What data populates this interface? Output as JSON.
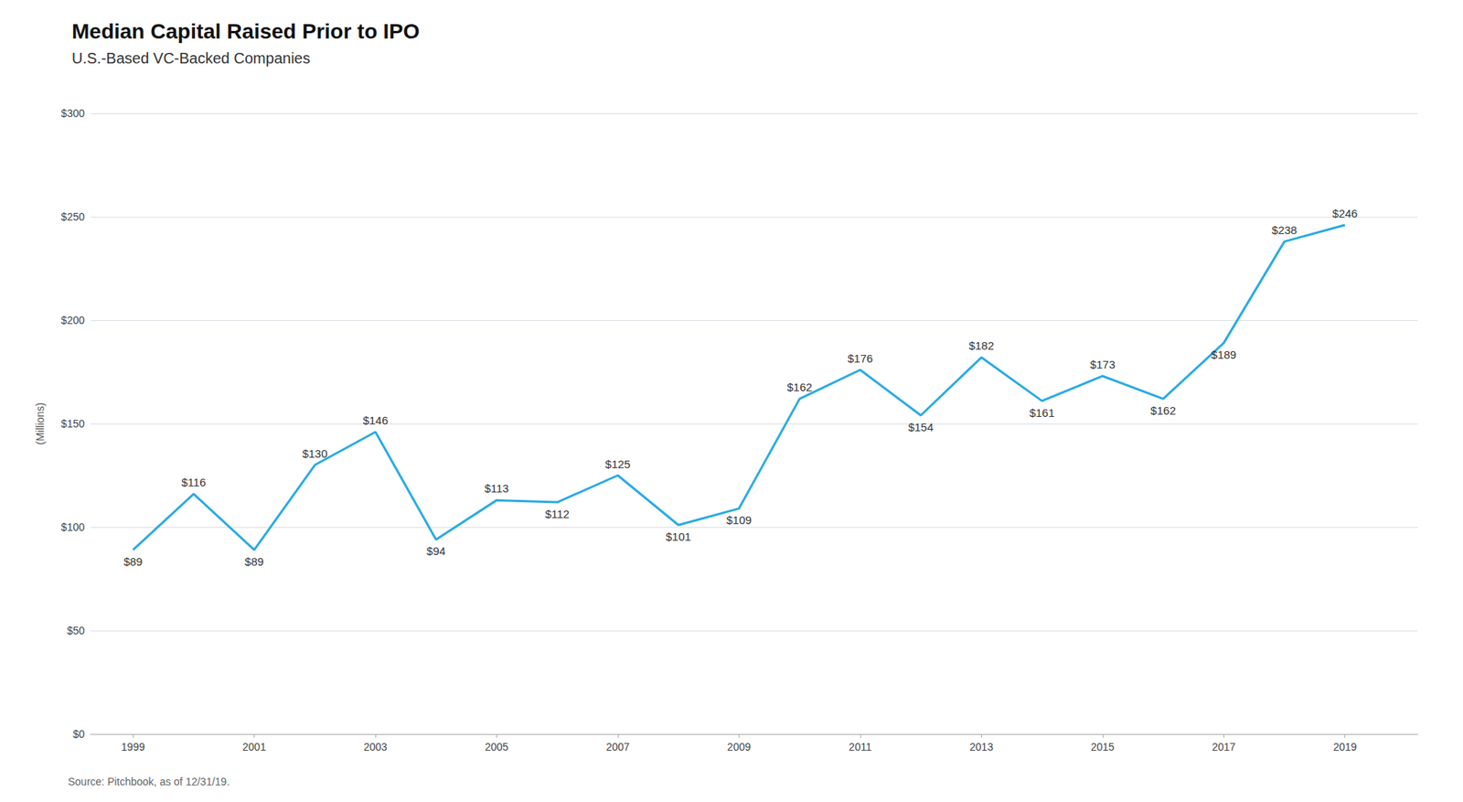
{
  "chart_data": {
    "type": "line",
    "title": "Median Capital Raised Prior to IPO",
    "subtitle": "U.S.-Based VC-Backed Companies",
    "source": "Source: Pitchbook, as of 12/31/19.",
    "ylabel": "(Millions)",
    "x": [
      1999,
      2000,
      2001,
      2002,
      2003,
      2004,
      2005,
      2006,
      2007,
      2008,
      2009,
      2010,
      2011,
      2012,
      2013,
      2014,
      2015,
      2016,
      2017,
      2018,
      2019
    ],
    "values": [
      89,
      116,
      89,
      130,
      146,
      94,
      113,
      112,
      125,
      101,
      109,
      162,
      176,
      154,
      182,
      161,
      173,
      162,
      189,
      238,
      246
    ],
    "value_labels": [
      "$89",
      "$116",
      "$89",
      "$130",
      "$146",
      "$94",
      "$113",
      "$112",
      "$125",
      "$101",
      "$109",
      "$162",
      "$176",
      "$154",
      "$182",
      "$161",
      "$173",
      "$162",
      "$189",
      "$238",
      "$246"
    ],
    "color": "#29ABE2",
    "data_labels": true,
    "xlim": [
      1998.3,
      2020.2
    ],
    "xticks": [
      1999,
      2001,
      2003,
      2005,
      2007,
      2009,
      2011,
      2013,
      2015,
      2017,
      2019
    ],
    "ylim": [
      0,
      300
    ],
    "yticks": [
      {
        "value": 0,
        "label": "$0"
      },
      {
        "value": 50,
        "label": "$50"
      },
      {
        "value": 100,
        "label": "$100"
      },
      {
        "value": 150,
        "label": "$150"
      },
      {
        "value": 200,
        "label": "$200"
      },
      {
        "value": 250,
        "label": "$250"
      },
      {
        "value": 300,
        "label": "$300"
      }
    ],
    "grid": true
  }
}
